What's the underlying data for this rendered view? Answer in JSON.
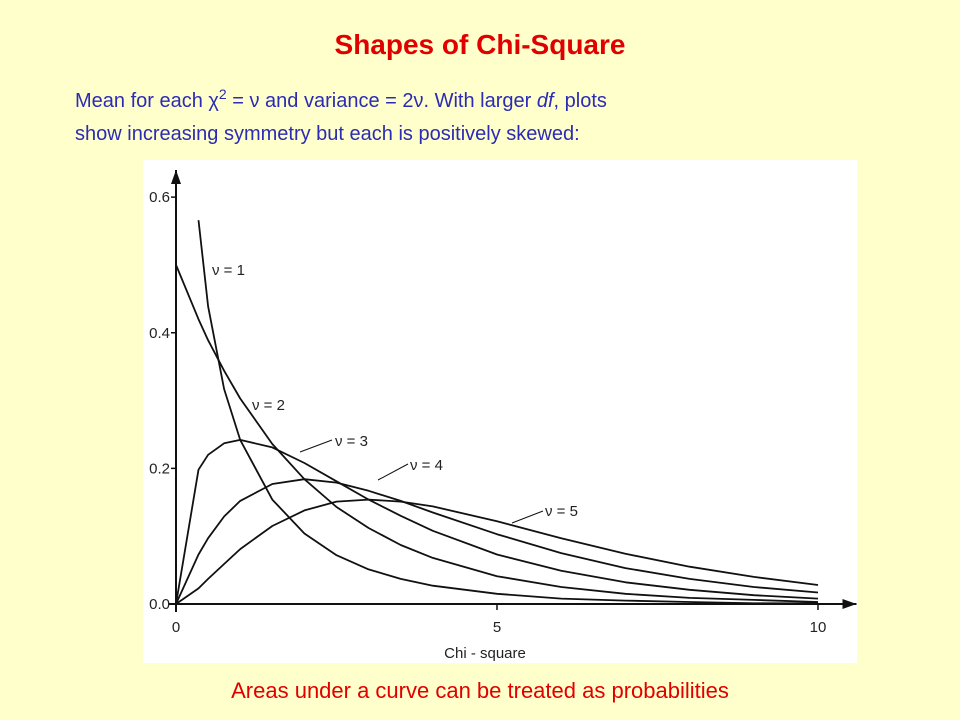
{
  "chart_data": {
    "type": "line",
    "title": "Shapes of Chi-Square",
    "subtitle": [
      [
        "Mean for each χ",
        "2",
        " = ν and variance = 2ν. With larger ",
        "df",
        ", plots"
      ],
      [
        "show increasing symmetry but each is positively skewed:"
      ]
    ],
    "x_label": "Chi - square",
    "footer": "Areas under a curve can be treated as probabilities",
    "x": [
      0,
      0.35,
      0.5,
      0.75,
      1,
      1.5,
      2,
      2.5,
      3,
      3.5,
      4,
      5,
      6,
      7,
      8,
      9,
      10
    ],
    "series": [
      {
        "name": "ν = 1",
        "color": "#111111",
        "values": [
          null,
          0.566,
          0.439,
          0.317,
          0.242,
          0.154,
          0.104,
          0.072,
          0.051,
          0.037,
          0.027,
          0.015,
          0.008,
          0.005,
          0.003,
          0.001,
          0.001
        ]
      },
      {
        "name": "ν = 2",
        "color": "#111111",
        "values": [
          0.5,
          0.42,
          0.389,
          0.344,
          0.303,
          0.236,
          0.184,
          0.143,
          0.112,
          0.087,
          0.068,
          0.041,
          0.025,
          0.015,
          0.009,
          0.006,
          0.003
        ]
      },
      {
        "name": "ν = 3",
        "color": "#111111",
        "values": [
          0,
          0.198,
          0.22,
          0.237,
          0.242,
          0.231,
          0.208,
          0.181,
          0.154,
          0.13,
          0.108,
          0.073,
          0.049,
          0.032,
          0.021,
          0.013,
          0.008
        ]
      },
      {
        "name": "ν = 4",
        "color": "#111111",
        "values": [
          0,
          0.073,
          0.097,
          0.129,
          0.152,
          0.177,
          0.184,
          0.179,
          0.167,
          0.152,
          0.135,
          0.103,
          0.075,
          0.053,
          0.037,
          0.025,
          0.017
        ]
      },
      {
        "name": "ν = 5",
        "color": "#111111",
        "values": [
          0,
          0.023,
          0.037,
          0.059,
          0.081,
          0.115,
          0.138,
          0.151,
          0.154,
          0.151,
          0.144,
          0.122,
          0.097,
          0.074,
          0.055,
          0.04,
          0.028
        ]
      }
    ],
    "xlim": [
      0,
      10.6
    ],
    "xticks": [
      0,
      5,
      10
    ],
    "ylim": [
      0,
      0.64
    ],
    "yticks": [
      {
        "value": 0,
        "label": "0.0"
      },
      0.2,
      0.4,
      0.6
    ],
    "grid": false
  }
}
